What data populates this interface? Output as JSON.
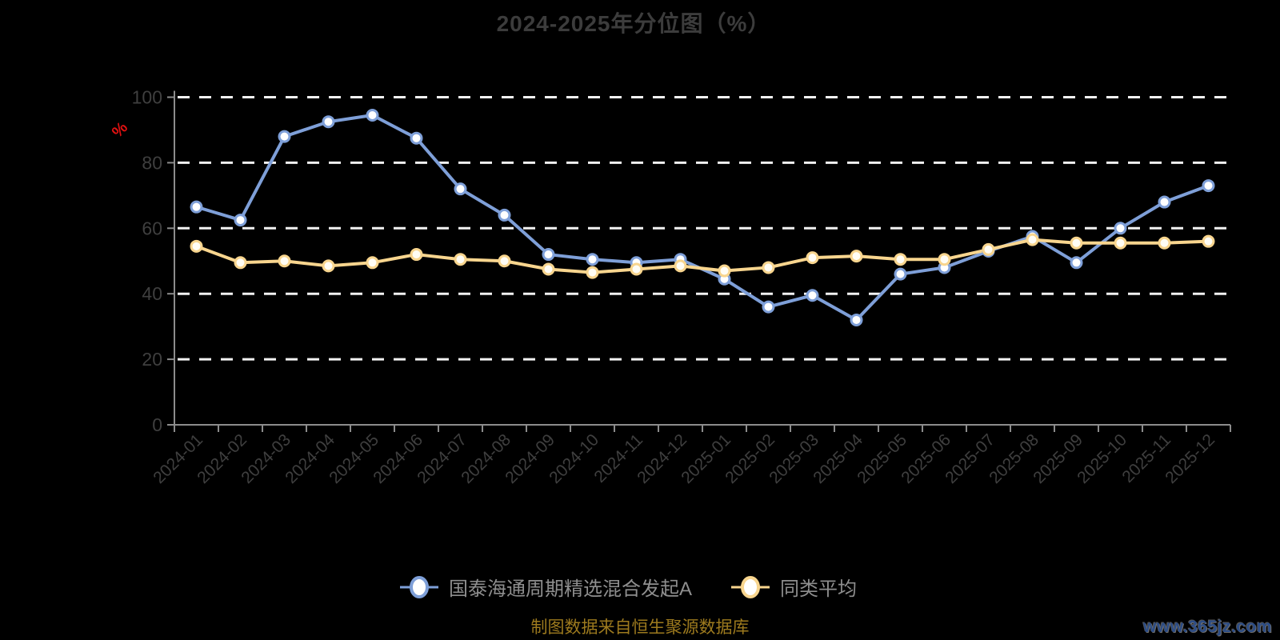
{
  "title": "2024-2025年分位图（%）",
  "footer": {
    "source_note": "制图数据来自恒生聚源数据库"
  },
  "watermark": "www.365jz.com",
  "colors": {
    "background": "#000000",
    "title_text": "#3c3c3c",
    "tick_label": "#3f3f3f",
    "axis_line": "#8c8c8c",
    "grid_line": "#f2f2f2",
    "legend_text": "#8e8e8e",
    "footer_text": "#9d7a1e",
    "watermark_text": "#2b4c86",
    "y_unit_label": "#df1111"
  },
  "chart_data": {
    "type": "line",
    "title": "2024-2025年分位图（%）",
    "xlabel": "",
    "ylabel": "%",
    "ylim": [
      0,
      100
    ],
    "yticks": [
      0,
      20,
      40,
      60,
      80,
      100
    ],
    "grid": true,
    "legend_position": "bottom",
    "categories": [
      "2024-01",
      "2024-02",
      "2024-03",
      "2024-04",
      "2024-05",
      "2024-06",
      "2024-07",
      "2024-08",
      "2024-09",
      "2024-10",
      "2024-11",
      "2024-12",
      "2025-01",
      "2025-02",
      "2025-03",
      "2025-04",
      "2025-05",
      "2025-06",
      "2025-07",
      "2025-08",
      "2025-09",
      "2025-10",
      "2025-11",
      "2025-12"
    ],
    "series": [
      {
        "name": "国泰海通周期精选混合发起A",
        "color": "#7e9fd8",
        "marker_fill": "#ffffff",
        "values": [
          66.5,
          62.5,
          88,
          92.5,
          94.5,
          87.5,
          72,
          64,
          52,
          50.5,
          49.5,
          50.5,
          44.5,
          36,
          39.5,
          32,
          46,
          48,
          53,
          57.5,
          49.5,
          60,
          68,
          73
        ]
      },
      {
        "name": "同类平均",
        "color": "#f8d58e",
        "marker_fill": "#fffdf5",
        "values": [
          54.5,
          49.5,
          50,
          48.5,
          49.5,
          52,
          50.5,
          50,
          47.5,
          46.5,
          47.5,
          48.5,
          47,
          48,
          51,
          51.5,
          50.5,
          50.5,
          53.5,
          56.5,
          55.5,
          55.5,
          55.5,
          56
        ]
      }
    ]
  }
}
